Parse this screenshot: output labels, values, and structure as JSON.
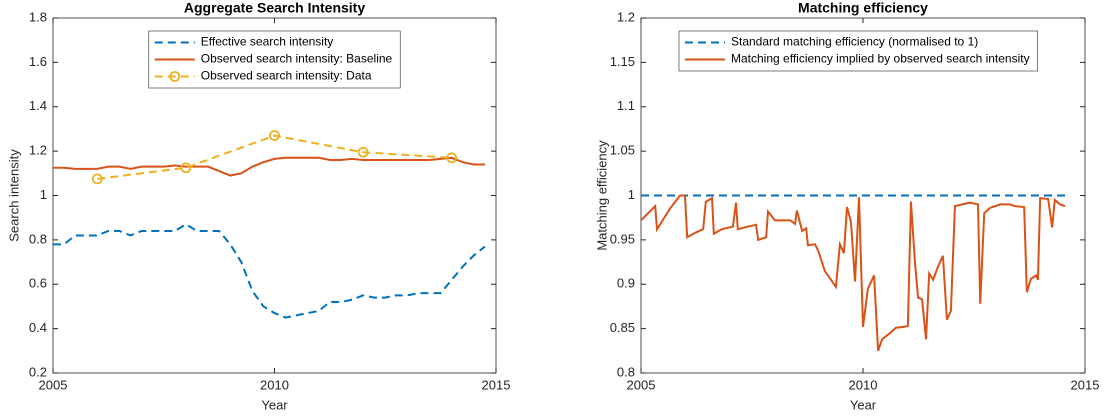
{
  "chart_data": [
    {
      "type": "line",
      "title": "Aggregate Search Intensity",
      "xlabel": "Year",
      "ylabel": "Search intensity",
      "xlim": [
        2005,
        2015
      ],
      "xticks": [
        2005,
        2010,
        2015
      ],
      "ylim": [
        0.2,
        1.8
      ],
      "yticks": [
        0.2,
        0.4,
        0.6,
        0.8,
        1,
        1.2,
        1.4,
        1.6,
        1.8
      ],
      "legend": "top",
      "series": [
        {
          "name": "Effective search intensity",
          "color": "#0072BD",
          "line_style": "dashed",
          "x": [
            2005,
            2005.25,
            2005.5,
            2005.75,
            2006,
            2006.25,
            2006.5,
            2006.75,
            2007,
            2007.25,
            2007.5,
            2007.75,
            2008,
            2008.25,
            2008.5,
            2008.75,
            2009,
            2009.25,
            2009.5,
            2009.75,
            2010,
            2010.25,
            2010.5,
            2010.75,
            2011,
            2011.25,
            2011.5,
            2011.75,
            2012,
            2012.25,
            2012.5,
            2012.75,
            2013,
            2013.25,
            2013.5,
            2013.75,
            2014,
            2014.25,
            2014.5,
            2014.75
          ],
          "values": [
            0.78,
            0.78,
            0.82,
            0.82,
            0.82,
            0.84,
            0.84,
            0.82,
            0.84,
            0.84,
            0.84,
            0.84,
            0.87,
            0.84,
            0.84,
            0.84,
            0.78,
            0.7,
            0.57,
            0.5,
            0.47,
            0.45,
            0.46,
            0.47,
            0.48,
            0.52,
            0.52,
            0.53,
            0.55,
            0.54,
            0.54,
            0.55,
            0.55,
            0.56,
            0.56,
            0.56,
            0.62,
            0.68,
            0.73,
            0.77
          ]
        },
        {
          "name": "Observed search intensity: Baseline",
          "color": "#D95319",
          "line_style": "solid",
          "x": [
            2005,
            2005.25,
            2005.5,
            2005.75,
            2006,
            2006.25,
            2006.5,
            2006.75,
            2007,
            2007.25,
            2007.5,
            2007.75,
            2008,
            2008.25,
            2008.5,
            2008.75,
            2009,
            2009.25,
            2009.5,
            2009.75,
            2010,
            2010.25,
            2010.5,
            2010.75,
            2011,
            2011.25,
            2011.5,
            2011.75,
            2012,
            2012.25,
            2012.5,
            2012.75,
            2013,
            2013.25,
            2013.5,
            2013.75,
            2014,
            2014.25,
            2014.5,
            2014.75
          ],
          "values": [
            1.125,
            1.125,
            1.12,
            1.12,
            1.12,
            1.13,
            1.13,
            1.12,
            1.13,
            1.13,
            1.13,
            1.135,
            1.13,
            1.13,
            1.13,
            1.11,
            1.09,
            1.1,
            1.13,
            1.15,
            1.165,
            1.17,
            1.17,
            1.17,
            1.17,
            1.16,
            1.16,
            1.165,
            1.16,
            1.16,
            1.16,
            1.16,
            1.16,
            1.16,
            1.16,
            1.165,
            1.17,
            1.15,
            1.14,
            1.14
          ]
        },
        {
          "name": "Observed search intensity: Data",
          "color": "#EDB120",
          "line_style": "dashed",
          "marker": "circle",
          "x": [
            2006,
            2008,
            2010,
            2012,
            2014
          ],
          "values": [
            1.075,
            1.125,
            1.27,
            1.195,
            1.17
          ]
        }
      ]
    },
    {
      "type": "line",
      "title": "Matching efficiency",
      "xlabel": "Year",
      "ylabel": "Matching efficiency",
      "xlim": [
        2005,
        2015
      ],
      "xticks": [
        2005,
        2010,
        2015
      ],
      "ylim": [
        0.8,
        1.2
      ],
      "yticks": [
        0.8,
        0.85,
        0.9,
        0.95,
        1,
        1.05,
        1.1,
        1.15,
        1.2
      ],
      "legend": "top-left",
      "series": [
        {
          "name": "Standard matching efficiency (normalised to 1)",
          "color": "#0072BD",
          "line_style": "dashed",
          "x": [
            2005,
            2014.55
          ],
          "values": [
            1,
            1
          ]
        },
        {
          "name": "Matching efficiency implied by observed search intensity",
          "color": "#D95319",
          "line_style": "solid",
          "x": [
            2005,
            2005.32,
            2005.36,
            2005.65,
            2005.88,
            2005.99,
            2006.04,
            2006.22,
            2006.4,
            2006.46,
            2006.6,
            2006.64,
            2006.82,
            2007.07,
            2007.14,
            2007.18,
            2007.41,
            2007.59,
            2007.64,
            2007.82,
            2007.86,
            2008.02,
            2008.36,
            2008.47,
            2008.51,
            2008.63,
            2008.72,
            2008.76,
            2008.92,
            2008.99,
            2009.14,
            2009.39,
            2009.48,
            2009.57,
            2009.64,
            2009.73,
            2009.82,
            2009.91,
            2010,
            2010.11,
            2010.25,
            2010.34,
            2010.43,
            2010.61,
            2010.74,
            2010.92,
            2011.01,
            2011.08,
            2011.17,
            2011.24,
            2011.33,
            2011.42,
            2011.49,
            2011.58,
            2011.69,
            2011.8,
            2011.89,
            2011.98,
            2012.07,
            2012.23,
            2012.41,
            2012.59,
            2012.64,
            2012.73,
            2012.86,
            2013.09,
            2013.31,
            2013.42,
            2013.63,
            2013.69,
            2013.78,
            2013.9,
            2013.94,
            2013.99,
            2014.17,
            2014.26,
            2014.32,
            2014.44,
            2014.55
          ],
          "values": [
            0.972,
            0.988,
            0.962,
            0.985,
            1.0,
            1.0,
            0.953,
            0.958,
            0.962,
            0.993,
            0.997,
            0.957,
            0.962,
            0.965,
            0.992,
            0.962,
            0.965,
            0.967,
            0.95,
            0.953,
            0.982,
            0.972,
            0.972,
            0.968,
            0.983,
            0.96,
            0.963,
            0.944,
            0.945,
            0.938,
            0.915,
            0.897,
            0.945,
            0.935,
            0.987,
            0.97,
            0.903,
            0.998,
            0.852,
            0.895,
            0.91,
            0.825,
            0.838,
            0.845,
            0.851,
            0.852,
            0.853,
            0.993,
            0.925,
            0.885,
            0.883,
            0.838,
            0.912,
            0.905,
            0.92,
            0.932,
            0.86,
            0.87,
            0.988,
            0.99,
            0.992,
            0.99,
            0.878,
            0.98,
            0.986,
            0.99,
            0.99,
            0.988,
            0.987,
            0.891,
            0.906,
            0.91,
            0.905,
            0.997,
            0.996,
            0.964,
            0.995,
            0.99,
            0.988
          ]
        }
      ]
    }
  ]
}
